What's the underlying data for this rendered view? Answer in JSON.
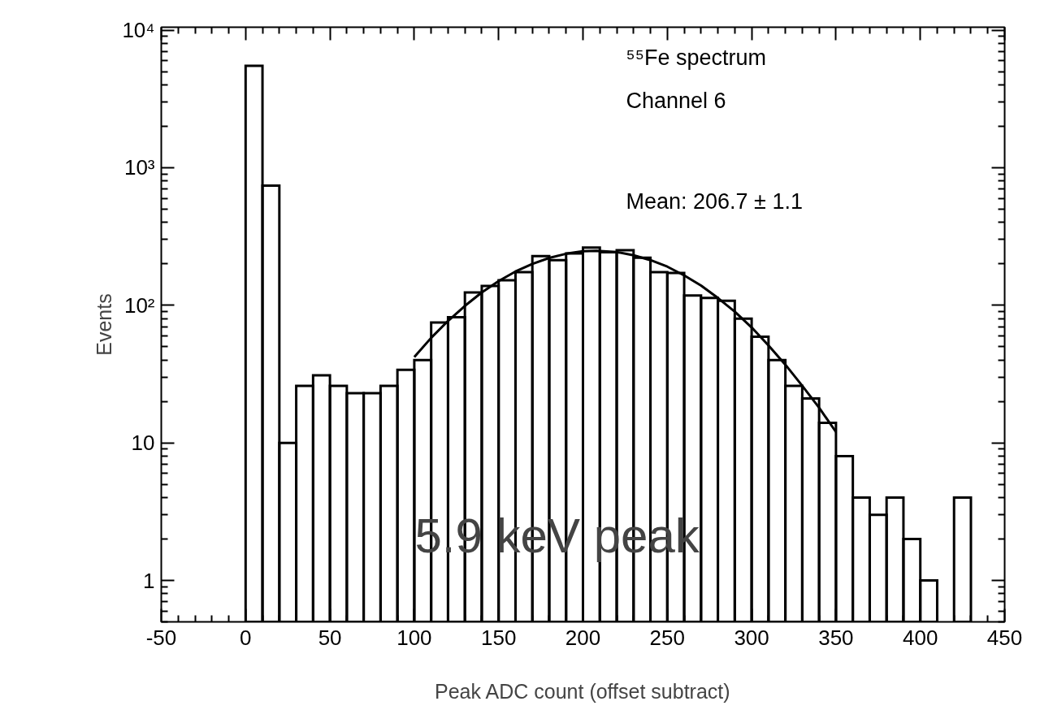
{
  "chart_data": {
    "type": "histogram",
    "xlabel": "Peak ADC count (offset subtract)",
    "ylabel": "Events",
    "bins": [
      0,
      10,
      20,
      30,
      40,
      50,
      60,
      70,
      80,
      90,
      100,
      110,
      120,
      130,
      140,
      150,
      160,
      170,
      180,
      190,
      200,
      210,
      220,
      230,
      240,
      250,
      260,
      270,
      280,
      290,
      300,
      310,
      320,
      330,
      340,
      350,
      360,
      370,
      380,
      390,
      400,
      410,
      420,
      430
    ],
    "values": [
      5500,
      740,
      10,
      26,
      31,
      26,
      23,
      23,
      26,
      34,
      40,
      75,
      82,
      124,
      138,
      152,
      174,
      228,
      213,
      238,
      263,
      243,
      251,
      222,
      174,
      172,
      118,
      113,
      108,
      80,
      59,
      40,
      26,
      21,
      14,
      8,
      4,
      3,
      4,
      2,
      1,
      null,
      4
    ],
    "color": "#000000",
    "series": [
      {
        "type": "line",
        "color": "#000000",
        "x": [
          100,
          110,
          120,
          130,
          140,
          150,
          160,
          170,
          180,
          190,
          200,
          208,
          220,
          230,
          240,
          250,
          260,
          270,
          280,
          290,
          300,
          310,
          320,
          330,
          340,
          350
        ],
        "values": [
          42,
          58,
          77,
          99,
          124,
          150,
          176,
          200,
          221,
          237,
          247,
          249,
          244,
          231,
          213,
          191,
          165,
          139,
          113,
          90,
          69,
          51,
          37,
          26,
          18,
          12
        ]
      }
    ],
    "log": "y",
    "xlim": [
      -50,
      450
    ],
    "xticks": [
      -50,
      0,
      50,
      100,
      150,
      200,
      250,
      300,
      350,
      400,
      450
    ],
    "ylim": [
      0.5,
      10500
    ],
    "yticks": [
      1,
      10,
      {
        "value": 100,
        "label": "10²"
      },
      {
        "value": 1000,
        "label": "10³"
      },
      {
        "value": 10000,
        "label": "10⁴"
      }
    ],
    "annotations": [
      "⁵⁵Fe spectrum",
      "Channel 6",
      "Mean: 206.7 ± 1.1",
      "5.9 keV peak"
    ],
    "grid": false
  }
}
